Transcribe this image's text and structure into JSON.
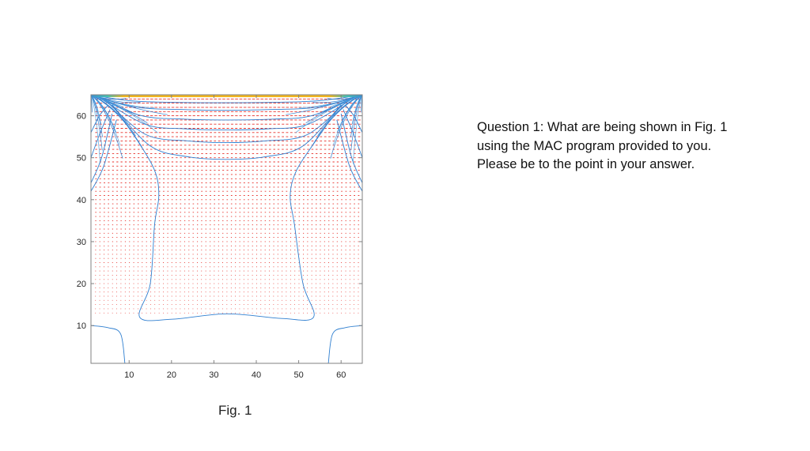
{
  "chart_data": {
    "type": "contour",
    "title": "",
    "xlabel": "",
    "ylabel": "",
    "xlim": [
      1,
      65
    ],
    "ylim": [
      1,
      65
    ],
    "x_ticks": [
      10,
      20,
      30,
      40,
      50,
      60
    ],
    "y_ticks": [
      10,
      20,
      30,
      40,
      50,
      60
    ],
    "grid": false,
    "overlay": "velocity vector field (red quiver arrows)",
    "colors": {
      "contour": "#2f7fd0",
      "vectors": "#e8322c",
      "axes": "#808080",
      "top_band": "#f2b61f"
    },
    "contours": [
      {
        "points": [
          [
            1,
            65
          ],
          [
            10,
            63.6
          ],
          [
            20,
            63.2
          ],
          [
            32,
            63.1
          ],
          [
            44,
            63.2
          ],
          [
            55,
            63.6
          ],
          [
            65,
            65
          ]
        ]
      },
      {
        "points": [
          [
            2,
            64.6
          ],
          [
            12,
            62
          ],
          [
            22,
            61.5
          ],
          [
            32,
            61.3
          ],
          [
            44,
            61.5
          ],
          [
            54,
            62
          ],
          [
            64,
            64.6
          ]
        ]
      },
      {
        "points": [
          [
            3,
            64.1
          ],
          [
            13,
            60
          ],
          [
            23,
            59.2
          ],
          [
            32,
            59
          ],
          [
            44,
            59.2
          ],
          [
            53,
            60
          ],
          [
            63,
            64.1
          ]
        ]
      },
      {
        "points": [
          [
            4,
            63.6
          ],
          [
            14,
            57.9
          ],
          [
            23,
            56.9
          ],
          [
            33,
            56.6
          ],
          [
            43,
            56.9
          ],
          [
            52,
            57.9
          ],
          [
            62,
            63.6
          ]
        ]
      },
      {
        "points": [
          [
            5,
            63.1
          ],
          [
            14,
            55.5
          ],
          [
            24,
            54
          ],
          [
            33,
            53.6
          ],
          [
            42,
            54
          ],
          [
            52,
            55.5
          ],
          [
            61,
            63.1
          ]
        ]
      },
      {
        "points": [
          [
            6,
            62.6
          ],
          [
            15,
            52.8
          ],
          [
            24,
            50.2
          ],
          [
            33,
            49.6
          ],
          [
            42,
            50.2
          ],
          [
            51,
            52.8
          ],
          [
            60,
            62.6
          ]
        ]
      },
      {
        "points": [
          [
            6.5,
            62
          ],
          [
            12,
            54
          ],
          [
            16,
            47
          ],
          [
            17,
            41
          ],
          [
            16,
            34
          ],
          [
            15,
            20
          ],
          [
            12.5,
            12
          ],
          [
            20,
            11.5
          ],
          [
            33,
            12.8
          ],
          [
            46,
            11.7
          ],
          [
            53.5,
            12
          ],
          [
            51,
            20
          ],
          [
            49,
            34
          ],
          [
            48,
            41
          ],
          [
            49.5,
            47
          ],
          [
            54,
            54
          ],
          [
            59.5,
            62
          ]
        ]
      },
      {
        "points": [
          [
            1,
            56
          ],
          [
            3,
            60
          ],
          [
            5,
            62.5
          ]
        ]
      },
      {
        "points": [
          [
            1,
            50
          ],
          [
            3,
            55.5
          ],
          [
            5.5,
            61.5
          ]
        ]
      },
      {
        "points": [
          [
            1,
            44
          ],
          [
            3.5,
            50
          ],
          [
            6,
            60.5
          ]
        ]
      },
      {
        "points": [
          [
            65,
            56
          ],
          [
            63,
            60
          ],
          [
            61,
            62.5
          ]
        ]
      },
      {
        "points": [
          [
            65,
            50
          ],
          [
            63,
            55.5
          ],
          [
            60.5,
            61.5
          ]
        ]
      },
      {
        "points": [
          [
            65,
            44
          ],
          [
            62.5,
            50
          ],
          [
            60,
            60.5
          ]
        ]
      },
      {
        "points": [
          [
            1,
            42
          ],
          [
            4,
            48
          ],
          [
            7,
            59
          ]
        ]
      },
      {
        "points": [
          [
            65,
            42
          ],
          [
            62,
            48
          ],
          [
            59,
            59
          ]
        ]
      },
      {
        "points": [
          [
            1,
            10
          ],
          [
            5,
            9.5
          ],
          [
            8,
            8
          ],
          [
            9,
            1
          ]
        ]
      },
      {
        "points": [
          [
            65,
            10
          ],
          [
            61,
            9.5
          ],
          [
            58,
            8
          ],
          [
            57,
            1
          ]
        ]
      }
    ],
    "fan_lines": 26
  },
  "caption": "Fig. 1",
  "question": "Question 1: What are being shown in Fig. 1 using the MAC program provided to you. Please be to the point in your answer."
}
